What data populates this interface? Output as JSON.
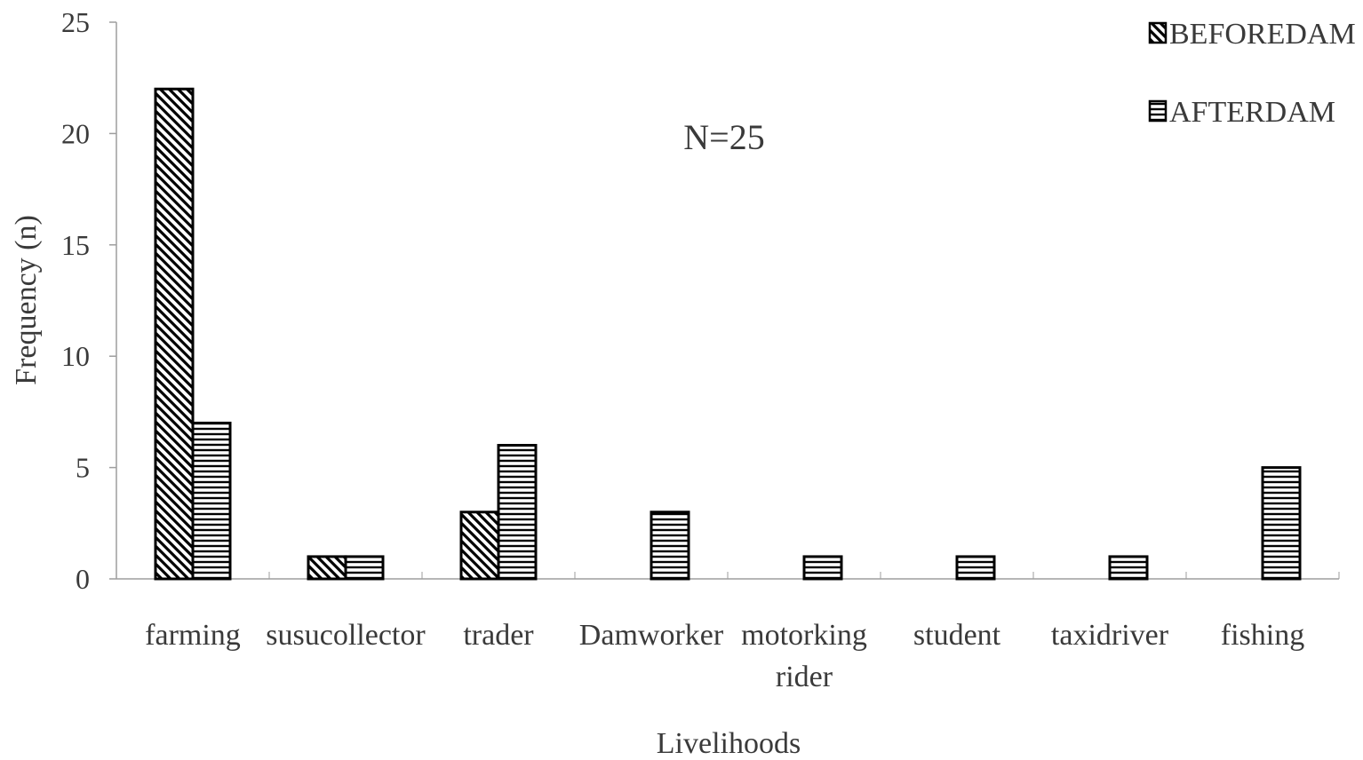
{
  "chart_data": {
    "type": "bar",
    "title": "",
    "xlabel": "Livelihoods",
    "ylabel": "Frequency (n)",
    "ylim": [
      0,
      25
    ],
    "yticks": [
      0,
      5,
      10,
      15,
      20,
      25
    ],
    "categories": [
      [
        "farming"
      ],
      [
        "susucollector"
      ],
      [
        "trader"
      ],
      [
        "Damworker"
      ],
      [
        "motorking",
        "rider"
      ],
      [
        "student"
      ],
      [
        "taxidriver"
      ],
      [
        "fishing"
      ]
    ],
    "series": [
      {
        "name": "BEFOREDAM",
        "pattern": "diagonal",
        "values": [
          22,
          1,
          3,
          0,
          0,
          0,
          0,
          0
        ]
      },
      {
        "name": "AFTERDAM",
        "pattern": "horizontal",
        "values": [
          7,
          1,
          6,
          3,
          1,
          1,
          1,
          5
        ]
      }
    ],
    "annotation": "N=25",
    "legend_position": "top-right",
    "grid": false,
    "colors": {
      "stroke": "#000000",
      "text": "#3a3a3a",
      "axis": "#9e9e9e"
    }
  }
}
